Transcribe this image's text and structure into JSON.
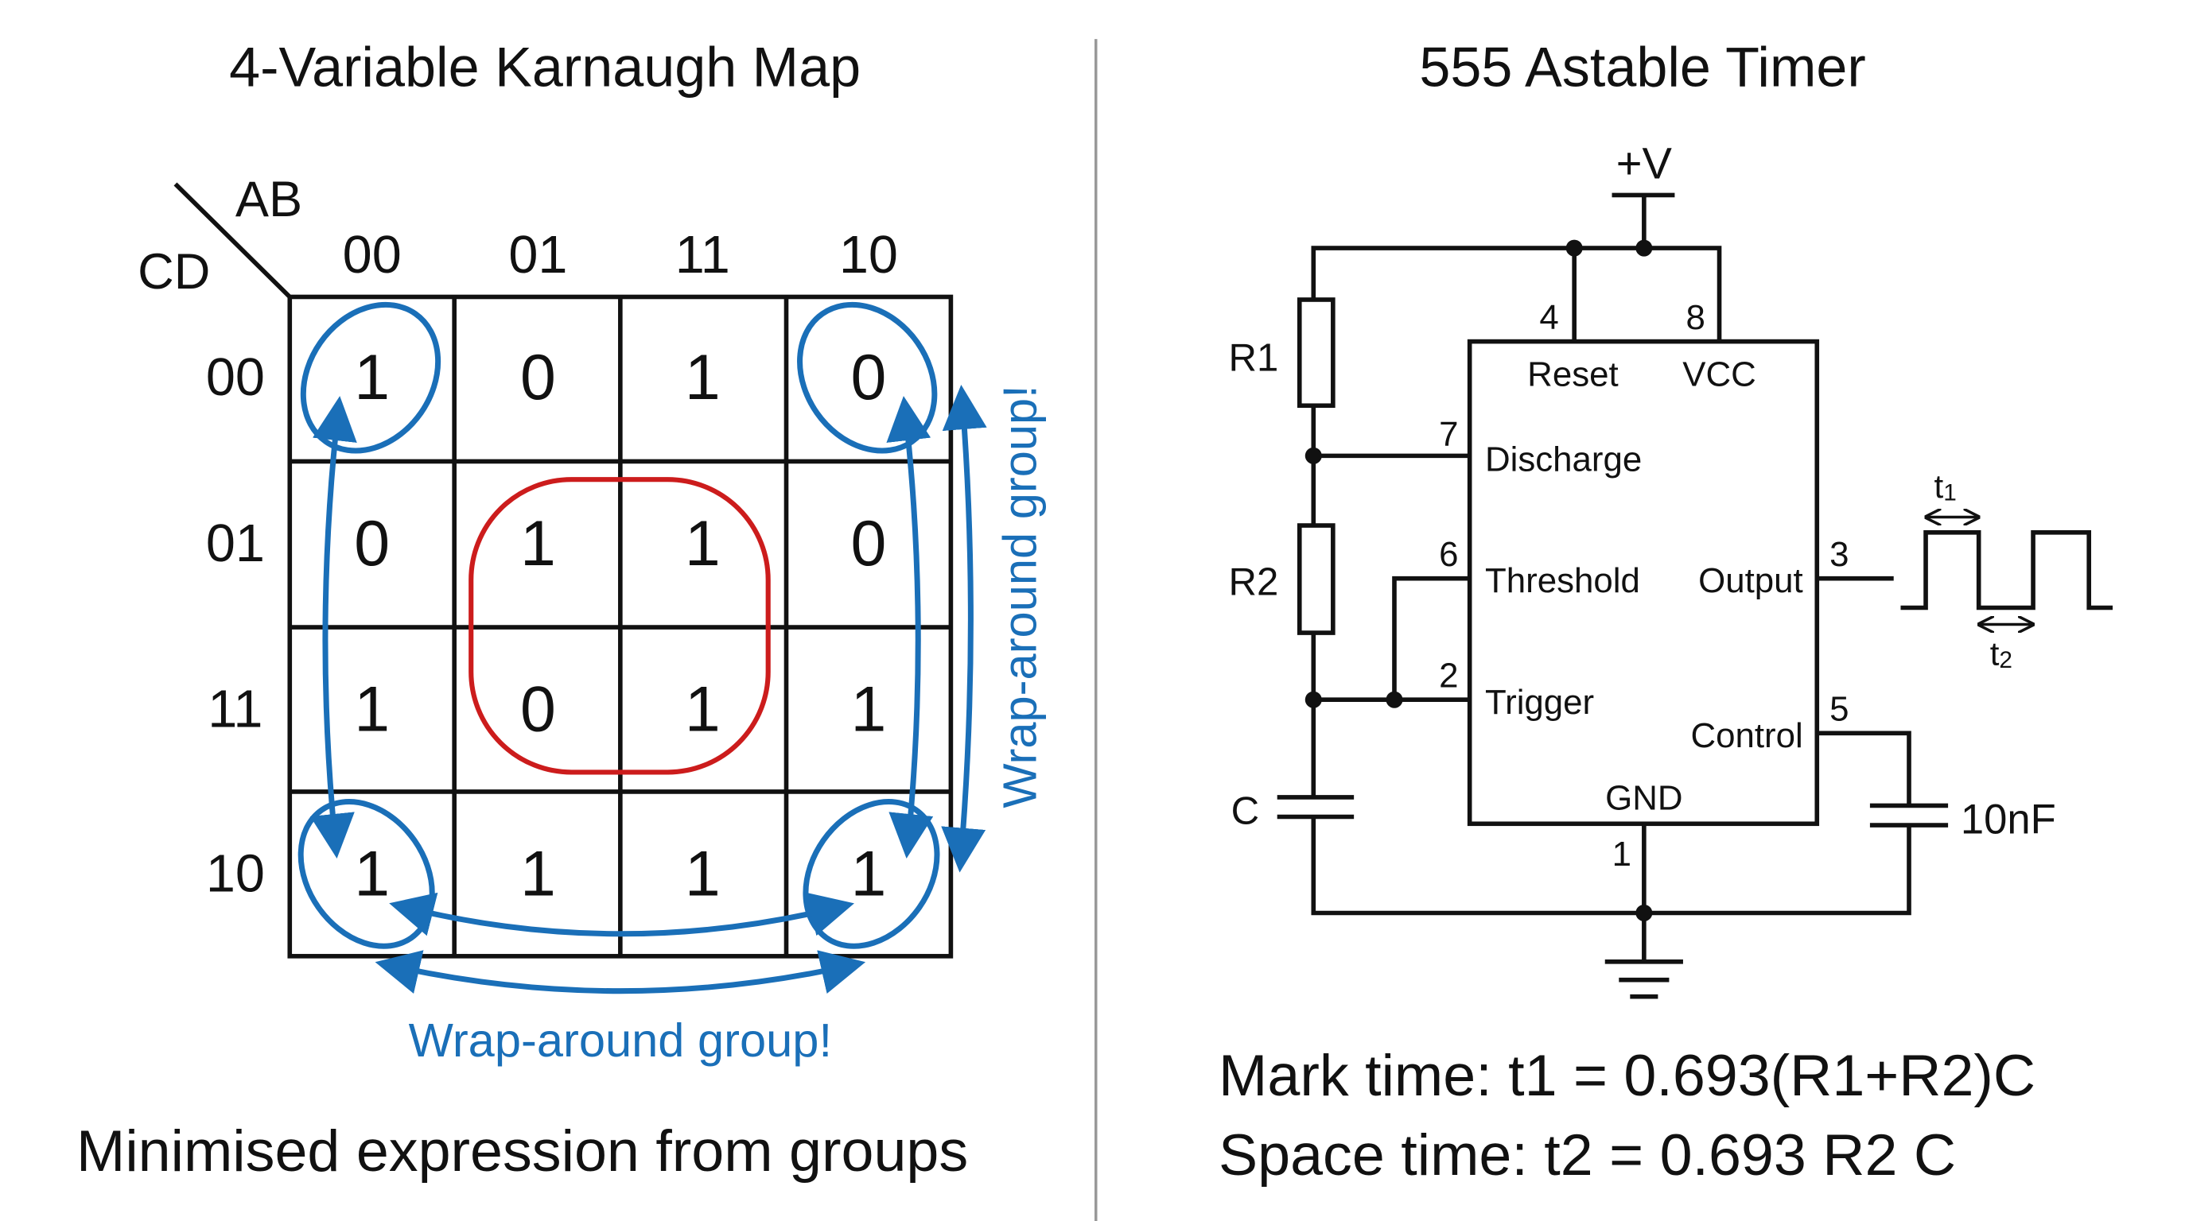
{
  "colors": {
    "group_blue": "#1a6fb8",
    "group_red": "#cc1c1c",
    "ink": "#111111",
    "divider": "#999999"
  },
  "kmap": {
    "title": "4-Variable Karnaugh Map",
    "col_var": "AB",
    "row_var": "CD",
    "col_headers": [
      "00",
      "01",
      "11",
      "10"
    ],
    "row_headers": [
      "00",
      "01",
      "11",
      "10"
    ],
    "cells": [
      [
        "1",
        "0",
        "1",
        "0"
      ],
      [
        "0",
        "1",
        "1",
        "0"
      ],
      [
        "1",
        "0",
        "1",
        "1"
      ],
      [
        "1",
        "1",
        "1",
        "1"
      ]
    ],
    "wrap_label_bottom": "Wrap-around group!",
    "wrap_label_side": "Wrap-around group!",
    "footer": "Minimised expression from groups"
  },
  "timer": {
    "title": "555 Astable Timer",
    "supply": "+V",
    "r1": "R1",
    "r2": "R2",
    "c": "C",
    "control_cap": "10nF",
    "pins": {
      "reset": {
        "num": "4",
        "label": "Reset"
      },
      "vcc": {
        "num": "8",
        "label": "VCC"
      },
      "discharge": {
        "num": "7",
        "label": "Discharge"
      },
      "threshold": {
        "num": "6",
        "label": "Threshold"
      },
      "trigger": {
        "num": "2",
        "label": "Trigger"
      },
      "output": {
        "num": "3",
        "label": "Output"
      },
      "control": {
        "num": "5",
        "label": "Control"
      },
      "gnd": {
        "num": "1",
        "label": "GND"
      }
    },
    "t1": "t",
    "t1_sub": "1",
    "t2": "t",
    "t2_sub": "2",
    "mark_formula": "Mark time: t1 = 0.693(R1+R2)C",
    "space_formula": "Space time: t2 = 0.693 R2 C"
  }
}
